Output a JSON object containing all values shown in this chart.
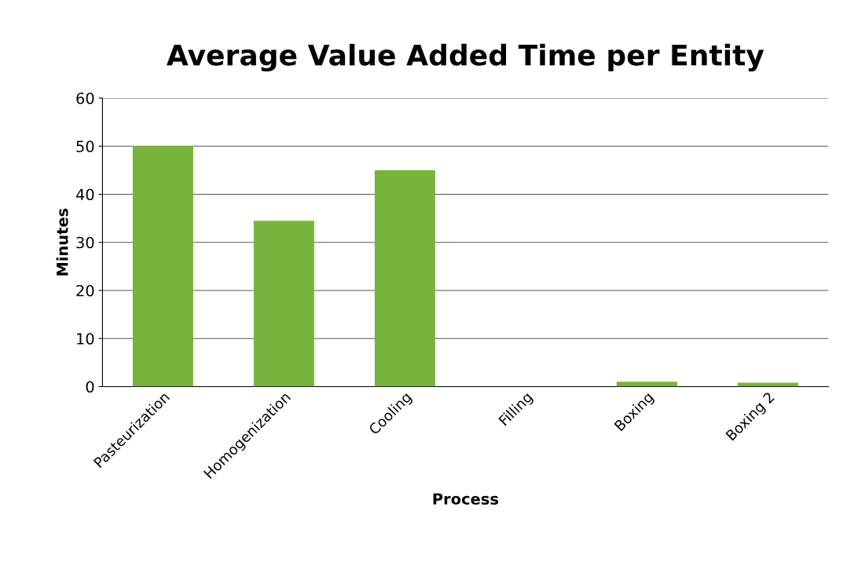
{
  "chart_data": {
    "type": "bar",
    "title": "Average Value Added Time per Entity",
    "xlabel": "Process",
    "ylabel": "Minutes",
    "categories": [
      "Pasteurization",
      "Homogenization",
      "Cooling",
      "Filling",
      "Boxing",
      "Boxing 2"
    ],
    "values": [
      50,
      34.5,
      45,
      0,
      1,
      0.8
    ],
    "color": "#78b43c",
    "ylim": [
      0,
      60
    ],
    "yticks": [
      0,
      10,
      20,
      30,
      40,
      50,
      60
    ],
    "grid": "y",
    "legend": false
  }
}
